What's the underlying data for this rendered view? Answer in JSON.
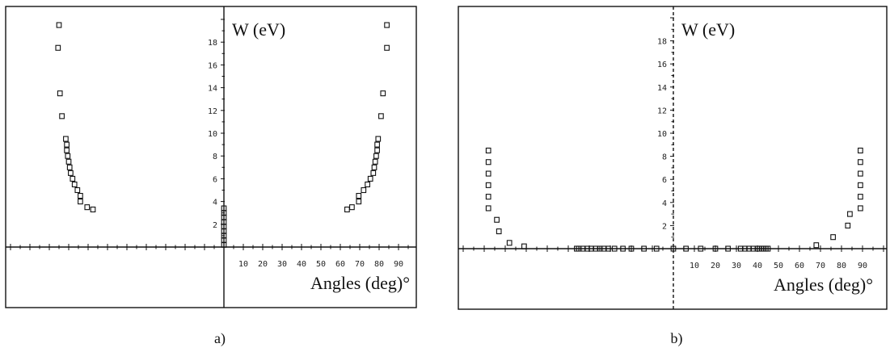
{
  "chart_data": [
    {
      "panel": "a)",
      "type": "scatter",
      "ylabel": "W (eV)",
      "xlabel": "Angles (deg)°",
      "x_tick_labels": [
        "10",
        "20",
        "30",
        "40",
        "50",
        "60",
        "70",
        "80",
        "90"
      ],
      "y_tick_labels": [
        "2",
        "4",
        "6",
        "8",
        "10",
        "12",
        "14",
        "16",
        "18"
      ],
      "xlim": [
        -100,
        100
      ],
      "ylim": [
        -5,
        21
      ],
      "grid": false,
      "points": [
        [
          -85,
          19.5
        ],
        [
          -85.5,
          17.5
        ],
        [
          -84.5,
          13.5
        ],
        [
          -83.5,
          11.5
        ],
        [
          -81.5,
          9.5
        ],
        [
          -81,
          9
        ],
        [
          -81,
          8.5
        ],
        [
          -80.5,
          8
        ],
        [
          -80,
          7.5
        ],
        [
          -79.5,
          7
        ],
        [
          -79,
          6.5
        ],
        [
          -78,
          6
        ],
        [
          -77,
          5.5
        ],
        [
          -75.5,
          5
        ],
        [
          -74,
          4.5
        ],
        [
          -74,
          4
        ],
        [
          -70.5,
          3.5
        ],
        [
          -67.5,
          3.3
        ],
        [
          63.5,
          3.3
        ],
        [
          66,
          3.5
        ],
        [
          69.5,
          4
        ],
        [
          69.5,
          4.5
        ],
        [
          72,
          5
        ],
        [
          74,
          5.5
        ],
        [
          75.5,
          6
        ],
        [
          77,
          6.5
        ],
        [
          77.5,
          7
        ],
        [
          78,
          7.5
        ],
        [
          78.5,
          8
        ],
        [
          79,
          8.5
        ],
        [
          79,
          9
        ],
        [
          79.5,
          9.5
        ],
        [
          81,
          11.5
        ],
        [
          82,
          13.5
        ],
        [
          84,
          17.5
        ],
        [
          84,
          19.5
        ],
        [
          0,
          0.2
        ],
        [
          0,
          0.6
        ],
        [
          0,
          1.0
        ],
        [
          0,
          1.4
        ],
        [
          0,
          1.8
        ],
        [
          0,
          2.2
        ],
        [
          0,
          2.6
        ],
        [
          0,
          3.0
        ],
        [
          0,
          3.4
        ]
      ]
    },
    {
      "panel": "b)",
      "type": "scatter",
      "ylabel": "W (eV)",
      "xlabel": "Angles (deg)°",
      "x_tick_labels": [
        "10",
        "20",
        "30",
        "40",
        "50",
        "60",
        "70",
        "80",
        "90"
      ],
      "y_tick_labels": [
        "2",
        "4",
        "6",
        "8",
        "10",
        "12",
        "14",
        "16",
        "18"
      ],
      "xlim": [
        -100,
        100
      ],
      "ylim": [
        -5,
        21
      ],
      "grid": false,
      "points": [
        [
          -88,
          8.5
        ],
        [
          -88,
          7.5
        ],
        [
          -88,
          6.5
        ],
        [
          -88,
          5.5
        ],
        [
          -88,
          4.5
        ],
        [
          -88,
          3.5
        ],
        [
          -84,
          2.5
        ],
        [
          -83,
          1.5
        ],
        [
          -78,
          0.5
        ],
        [
          -71,
          0.2
        ],
        [
          -46,
          0
        ],
        [
          -45,
          0
        ],
        [
          -43,
          0
        ],
        [
          -41,
          0
        ],
        [
          -39,
          0
        ],
        [
          -37,
          0
        ],
        [
          -35,
          0
        ],
        [
          -33,
          0
        ],
        [
          -31,
          0
        ],
        [
          -28,
          0
        ],
        [
          -24,
          0
        ],
        [
          -20,
          0
        ],
        [
          -14,
          0
        ],
        [
          -8,
          0
        ],
        [
          0,
          0
        ],
        [
          6,
          0
        ],
        [
          13,
          0
        ],
        [
          20,
          0
        ],
        [
          26,
          0
        ],
        [
          32,
          0
        ],
        [
          34,
          0
        ],
        [
          36,
          0
        ],
        [
          38,
          0
        ],
        [
          40,
          0
        ],
        [
          41,
          0
        ],
        [
          42,
          0
        ],
        [
          43,
          0
        ],
        [
          44,
          0
        ],
        [
          45,
          0
        ],
        [
          68,
          0.3
        ],
        [
          76,
          1
        ],
        [
          83,
          2
        ],
        [
          84,
          3
        ],
        [
          89,
          3.5
        ],
        [
          89,
          4.5
        ],
        [
          89,
          5.5
        ],
        [
          89,
          6.5
        ],
        [
          89,
          7.5
        ],
        [
          89,
          8.5
        ]
      ]
    }
  ]
}
